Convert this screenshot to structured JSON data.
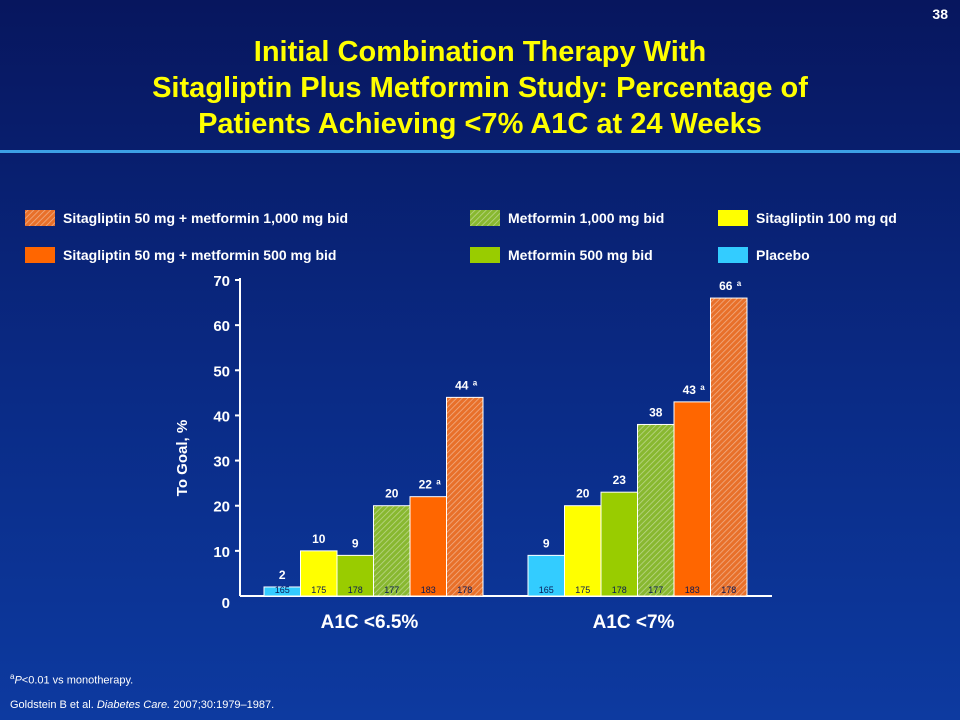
{
  "slide": {
    "number": "38",
    "title_lines": [
      "Initial Combination Therapy With",
      "Sitagliptin Plus Metformin Study: Percentage of",
      "Patients Achieving <7% A1C at 24 Weeks"
    ],
    "footnote_prefix": "a",
    "footnote_italic": "P",
    "footnote_text": "<0.01 vs monotherapy.",
    "citation_pre": "Goldstein B et al. ",
    "citation_journal": "Diabetes Care.",
    "citation_post": " 2007;30:1979–1987."
  },
  "colors": {
    "placebo": "#33ccff",
    "sita100": "#ffff00",
    "met500": "#99cc00",
    "met1000": "#88b830",
    "combo500": "#ff6600",
    "combo1000": "#e8702a"
  },
  "chart_data": {
    "type": "bar",
    "ylabel": "To Goal, %",
    "ylim": [
      0,
      70
    ],
    "yticks": [
      0,
      10,
      20,
      30,
      40,
      50,
      60,
      70
    ],
    "categories": [
      "A1C <6.5%",
      "A1C <7%"
    ],
    "series": [
      {
        "name": "Placebo",
        "values": [
          2,
          9
        ],
        "n": [
          165,
          165
        ],
        "sig": [
          false,
          false
        ],
        "color_key": "placebo",
        "hatched": false
      },
      {
        "name": "Sitagliptin 100 mg qd",
        "values": [
          10,
          20
        ],
        "n": [
          175,
          175
        ],
        "sig": [
          false,
          false
        ],
        "color_key": "sita100",
        "hatched": false
      },
      {
        "name": "Metformin 500 mg bid",
        "values": [
          9,
          23
        ],
        "n": [
          178,
          178
        ],
        "sig": [
          false,
          false
        ],
        "color_key": "met500",
        "hatched": false
      },
      {
        "name": "Metformin 1,000 mg bid",
        "values": [
          20,
          38
        ],
        "n": [
          177,
          177
        ],
        "sig": [
          false,
          false
        ],
        "color_key": "met1000",
        "hatched": true
      },
      {
        "name": "Sitagliptin 50 mg + metformin 500 mg bid",
        "values": [
          22,
          43
        ],
        "n": [
          183,
          183
        ],
        "sig": [
          true,
          true
        ],
        "color_key": "combo500",
        "hatched": false
      },
      {
        "name": "Sitagliptin 50 mg + metformin 1,000 mg bid",
        "values": [
          44,
          66
        ],
        "n": [
          178,
          178
        ],
        "sig": [
          true,
          true
        ],
        "color_key": "combo1000",
        "hatched": true
      }
    ],
    "sig_marker": "a",
    "legend_order": [
      "Sitagliptin 50 mg + metformin 1,000 mg bid",
      "Metformin 1,000 mg bid",
      "Sitagliptin 100 mg qd",
      "Sitagliptin 50 mg + metformin 500 mg bid",
      "Metformin 500 mg bid",
      "Placebo"
    ],
    "legend_position": "top"
  }
}
